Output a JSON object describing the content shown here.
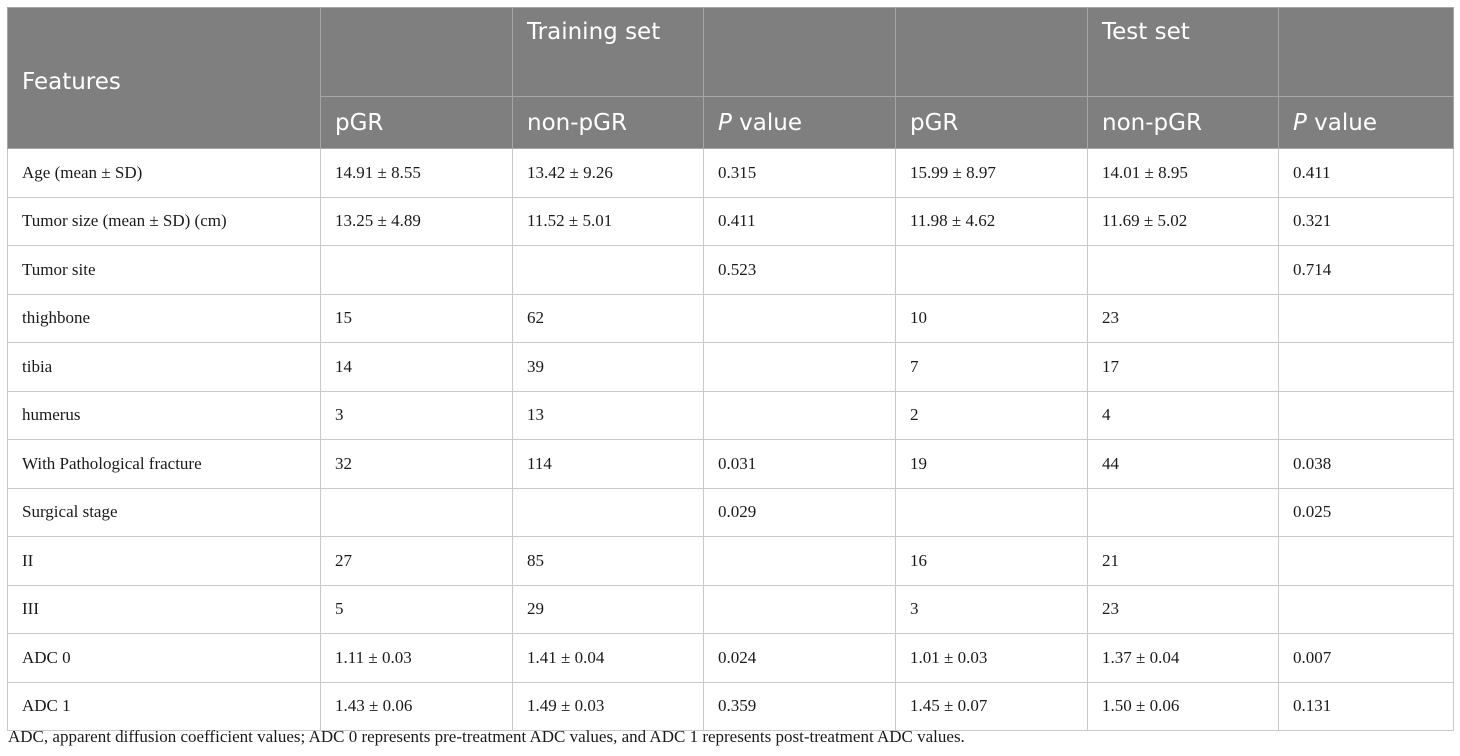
{
  "header": {
    "features": "Features",
    "training_group": "Training set",
    "test_group": "Test set",
    "pgr": "pGR",
    "non_pgr": "non-pGR",
    "p_italic": "P",
    "p_rest": " value"
  },
  "rows": [
    [
      "Age (mean ± SD)",
      "14.91 ± 8.55",
      "13.42 ± 9.26",
      "0.315",
      "15.99 ± 8.97",
      "14.01 ± 8.95",
      "0.411"
    ],
    [
      "Tumor size (mean ± SD) (cm)",
      "13.25 ± 4.89",
      "11.52 ± 5.01",
      "0.411",
      "11.98 ± 4.62",
      "11.69 ± 5.02",
      "0.321"
    ],
    [
      "Tumor site",
      "",
      "",
      "0.523",
      "",
      "",
      "0.714"
    ],
    [
      "thighbone",
      "15",
      "62",
      "",
      "10",
      "23",
      ""
    ],
    [
      "tibia",
      "14",
      "39",
      "",
      "7",
      "17",
      ""
    ],
    [
      "humerus",
      "3",
      "13",
      "",
      "2",
      "4",
      ""
    ],
    [
      "With Pathological fracture",
      "32",
      "114",
      "0.031",
      "19",
      "44",
      "0.038"
    ],
    [
      "Surgical stage",
      "",
      "",
      "0.029",
      "",
      "",
      "0.025"
    ],
    [
      "II",
      "27",
      "85",
      "",
      "16",
      "21",
      ""
    ],
    [
      "III",
      "5",
      "29",
      "",
      "3",
      "23",
      ""
    ],
    [
      "ADC 0",
      "1.11 ± 0.03",
      "1.41 ± 0.04",
      "0.024",
      "1.01 ± 0.03",
      "1.37 ± 0.04",
      "0.007"
    ],
    [
      "ADC 1",
      "1.43 ± 0.06",
      "1.49 ± 0.03",
      "0.359",
      "1.45 ± 0.07",
      "1.50 ± 0.06",
      "0.131"
    ]
  ],
  "footnote": "ADC, apparent diffusion coefficient values; ADC 0 represents pre-treatment ADC values, and ADC 1 represents post-treatment ADC values."
}
